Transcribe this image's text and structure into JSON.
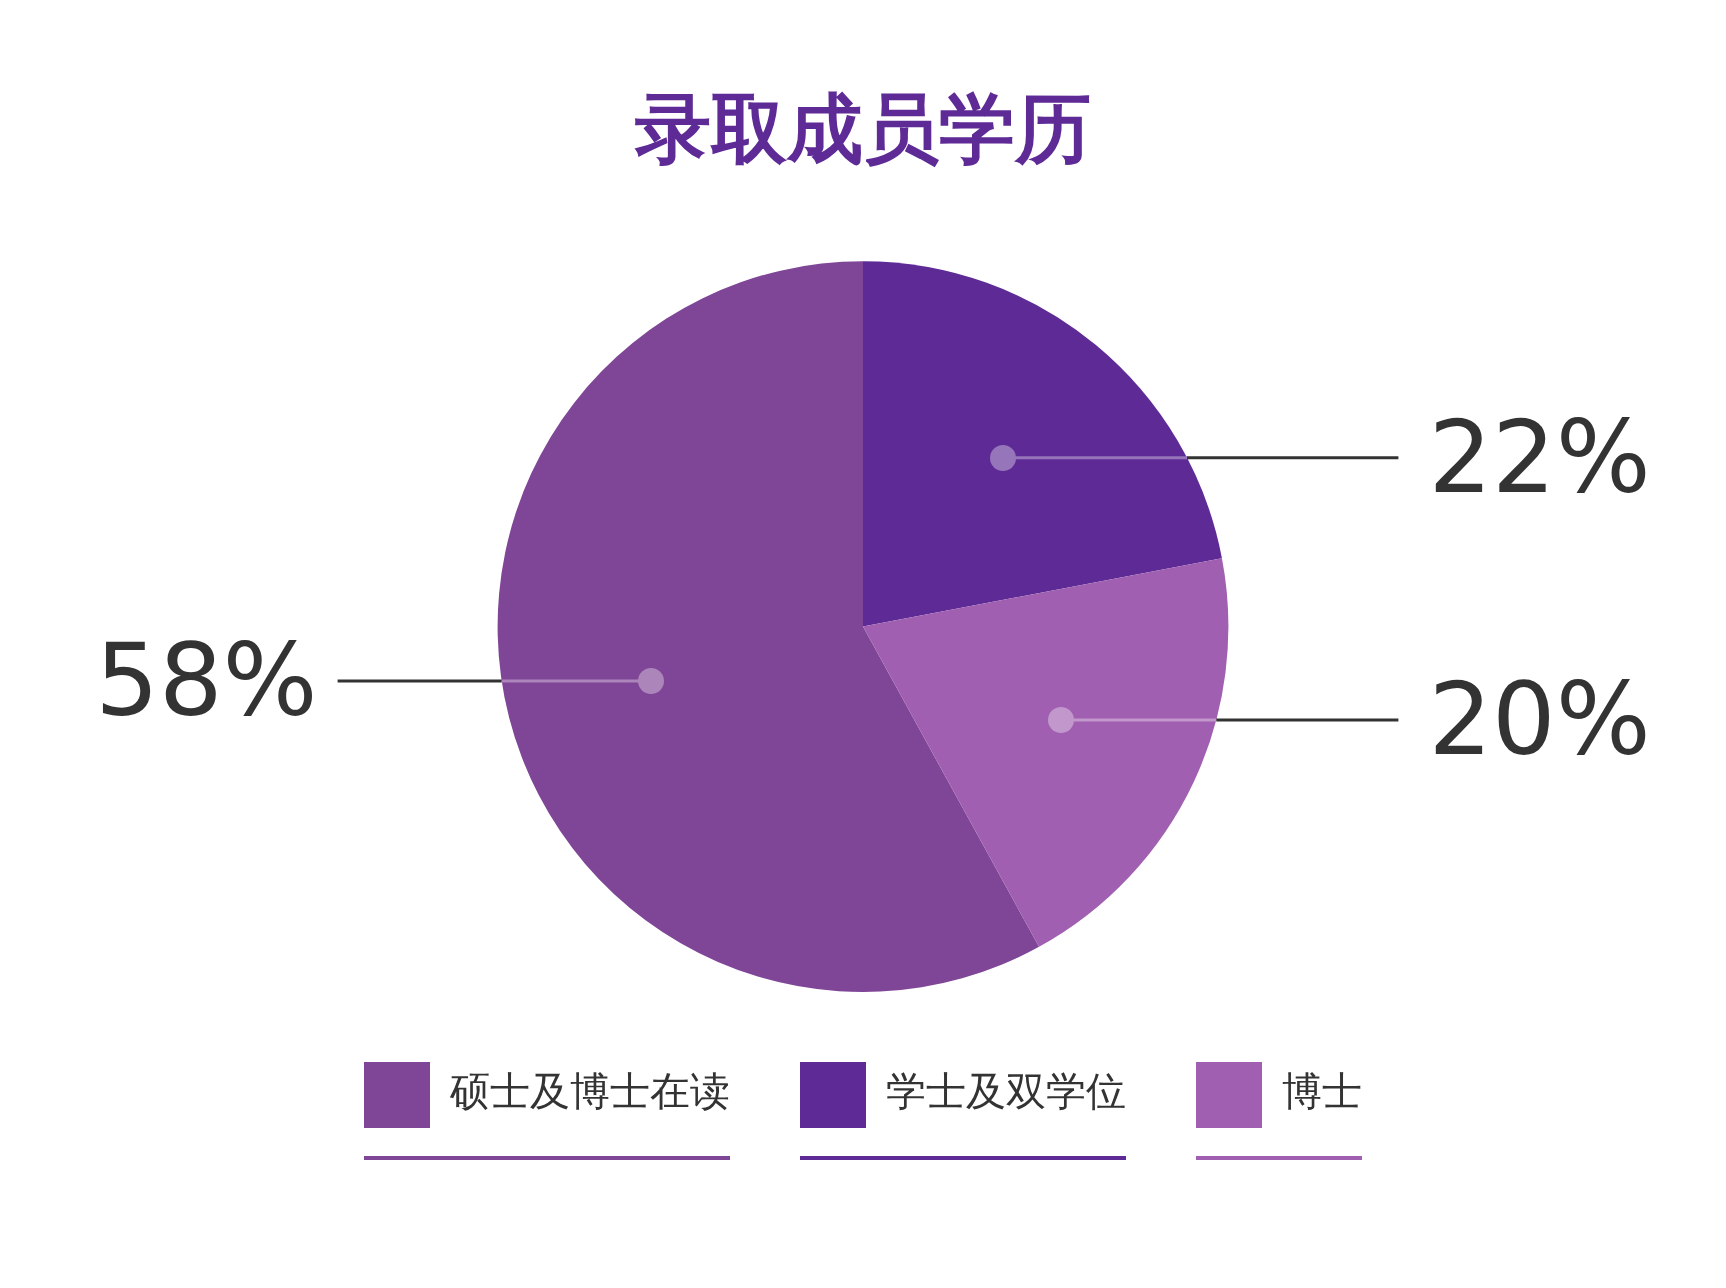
{
  "chart_data": {
    "type": "pie",
    "title": "录取成员学历",
    "categories": [
      "硕士及博士在读",
      "学士及双学位",
      "博士"
    ],
    "values": [
      58,
      22,
      20
    ],
    "colors": [
      "#7f4596",
      "#5e2a96",
      "#a05fb0"
    ],
    "value_labels": [
      "58%",
      "22%",
      "20%"
    ],
    "legend": "bottom"
  }
}
